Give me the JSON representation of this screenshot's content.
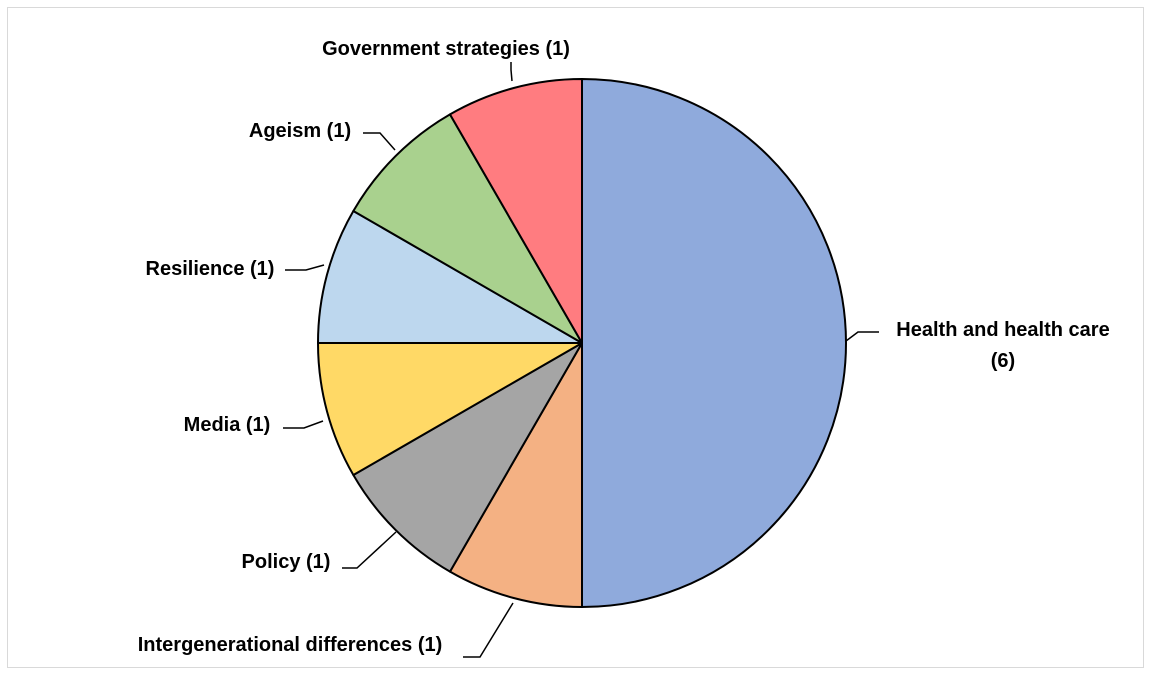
{
  "chart_data": {
    "type": "pie",
    "title": "",
    "slices": [
      {
        "label": "Health and health care",
        "display_label": [
          "Health and health care",
          "(6)"
        ],
        "value": 6,
        "color": "#8FAADC"
      },
      {
        "label": "Intergenerational differences",
        "display_label": [
          "Intergenerational differences (1)"
        ],
        "value": 1,
        "color": "#F4B183"
      },
      {
        "label": "Policy",
        "display_label": [
          "Policy (1)"
        ],
        "value": 1,
        "color": "#A5A5A5"
      },
      {
        "label": "Media",
        "display_label": [
          "Media (1)"
        ],
        "value": 1,
        "color": "#FFD966"
      },
      {
        "label": "Resilience",
        "display_label": [
          "Resilience (1)"
        ],
        "value": 1,
        "color": "#BDD7EE"
      },
      {
        "label": "Ageism",
        "display_label": [
          "Ageism (1)"
        ],
        "value": 1,
        "color": "#A9D18E"
      },
      {
        "label": "Government strategies",
        "display_label": [
          "Government strategies (1)"
        ],
        "value": 1,
        "color": "#FF7C80"
      }
    ],
    "start_angle_deg": 0,
    "direction": "clockwise",
    "legend": "none",
    "data_labels": "outside-with-leader-lines"
  }
}
